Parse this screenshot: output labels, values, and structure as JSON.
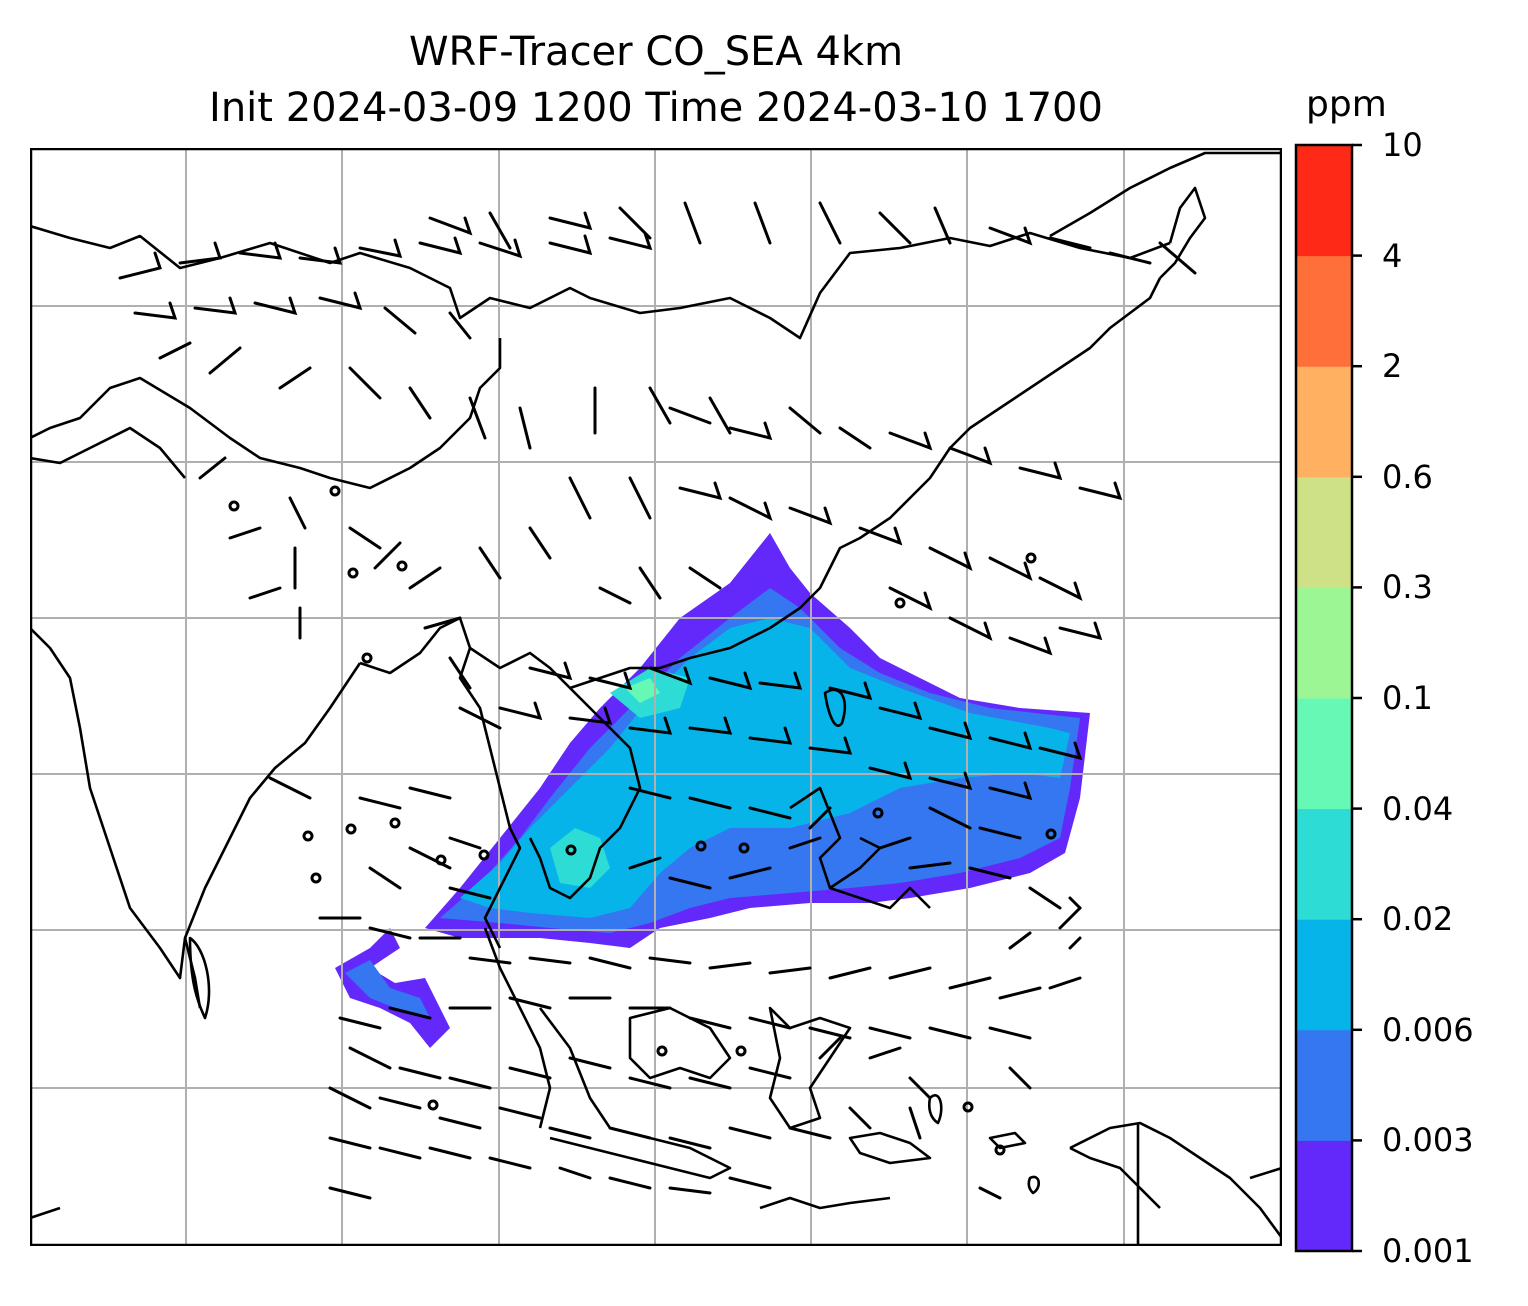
{
  "title": {
    "line1": "WRF-Tracer CO_SEA 4km",
    "line2": "Init 2024-03-09 1200 Time 2024-03-10 1700"
  },
  "colorbar": {
    "unit": "ppm",
    "levels": [
      "0.001",
      "0.003",
      "0.006",
      "0.02",
      "0.04",
      "0.1",
      "0.3",
      "0.6",
      "2",
      "4",
      "10"
    ],
    "colors": [
      "#6329fb",
      "#3576f1",
      "#06b4ea",
      "#2ddcd4",
      "#66f9b6",
      "#9df694",
      "#cfe186",
      "#ffb060",
      "#ff6f39",
      "#ff2917"
    ]
  },
  "map": {
    "gridlines": true,
    "overlay": "wind barbs",
    "tracer": "CO_SEA"
  }
}
